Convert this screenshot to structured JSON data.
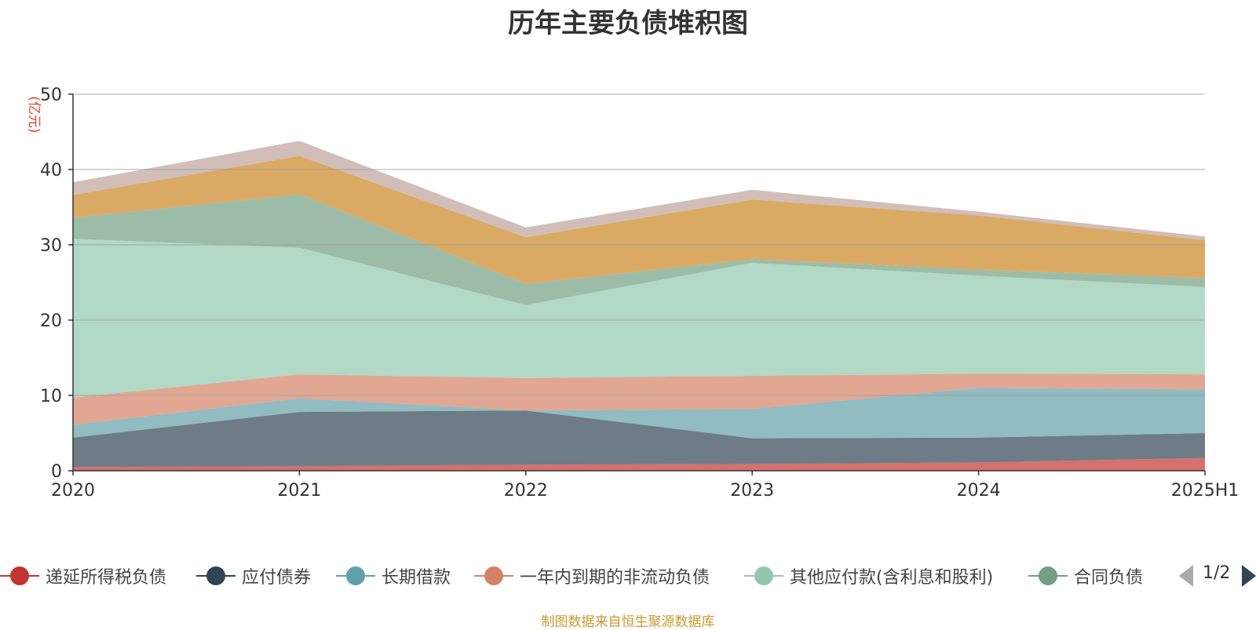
{
  "chart_data": {
    "type": "area",
    "stacked": true,
    "title": "历年主要负债堆积图",
    "ylabel": "(亿元)",
    "xlabel": "",
    "categories": [
      "2020",
      "2021",
      "2022",
      "2023",
      "2024",
      "2025H1"
    ],
    "ylim": [
      0,
      50
    ],
    "yticks": [
      0,
      10,
      20,
      30,
      40,
      50
    ],
    "grid": true,
    "legend_position": "bottom",
    "series": [
      {
        "name": "递延所得税负债",
        "color": "#c23531",
        "values": [
          0.5,
          0.6,
          0.8,
          0.9,
          1.1,
          1.7
        ]
      },
      {
        "name": "应付债券",
        "color": "#2f4554",
        "values": [
          3.9,
          7.2,
          7.2,
          3.4,
          3.3,
          3.3
        ]
      },
      {
        "name": "长期借款",
        "color": "#61a0a8",
        "values": [
          1.7,
          1.8,
          0.0,
          3.9,
          6.6,
          5.8
        ]
      },
      {
        "name": "一年内到期的非流动负债",
        "color": "#d48265",
        "values": [
          3.6,
          3.2,
          4.3,
          4.4,
          1.9,
          2.0
        ]
      },
      {
        "name": "其他应付款(含利息和股利)",
        "color": "#91c7ae",
        "values": [
          21.1,
          16.8,
          9.7,
          15.0,
          13.0,
          11.6
        ]
      },
      {
        "name": "合同负债",
        "color": "#749f83",
        "values": [
          2.8,
          7.1,
          2.8,
          0.5,
          0.8,
          1.2
        ]
      },
      {
        "name": "",
        "color": "#ca8622",
        "values": [
          3.0,
          5.1,
          6.2,
          7.9,
          7.2,
          5.0
        ]
      },
      {
        "name": "",
        "color": "#bda29a",
        "values": [
          1.7,
          2.0,
          1.3,
          1.3,
          0.5,
          0.5
        ]
      }
    ]
  },
  "legend": {
    "items": [
      {
        "label": "递延所得税负债",
        "color": "#c23531"
      },
      {
        "label": "应付债券",
        "color": "#2f4554"
      },
      {
        "label": "长期借款",
        "color": "#61a0a8"
      },
      {
        "label": "一年内到期的非流动负债",
        "color": "#d48265"
      },
      {
        "label": "其他应付款(含利息和股利)",
        "color": "#91c7ae"
      },
      {
        "label": "合同负债",
        "color": "#749f83"
      }
    ],
    "page_indicator": "1/2"
  },
  "source_note": "制图数据来自恒生聚源数据库"
}
